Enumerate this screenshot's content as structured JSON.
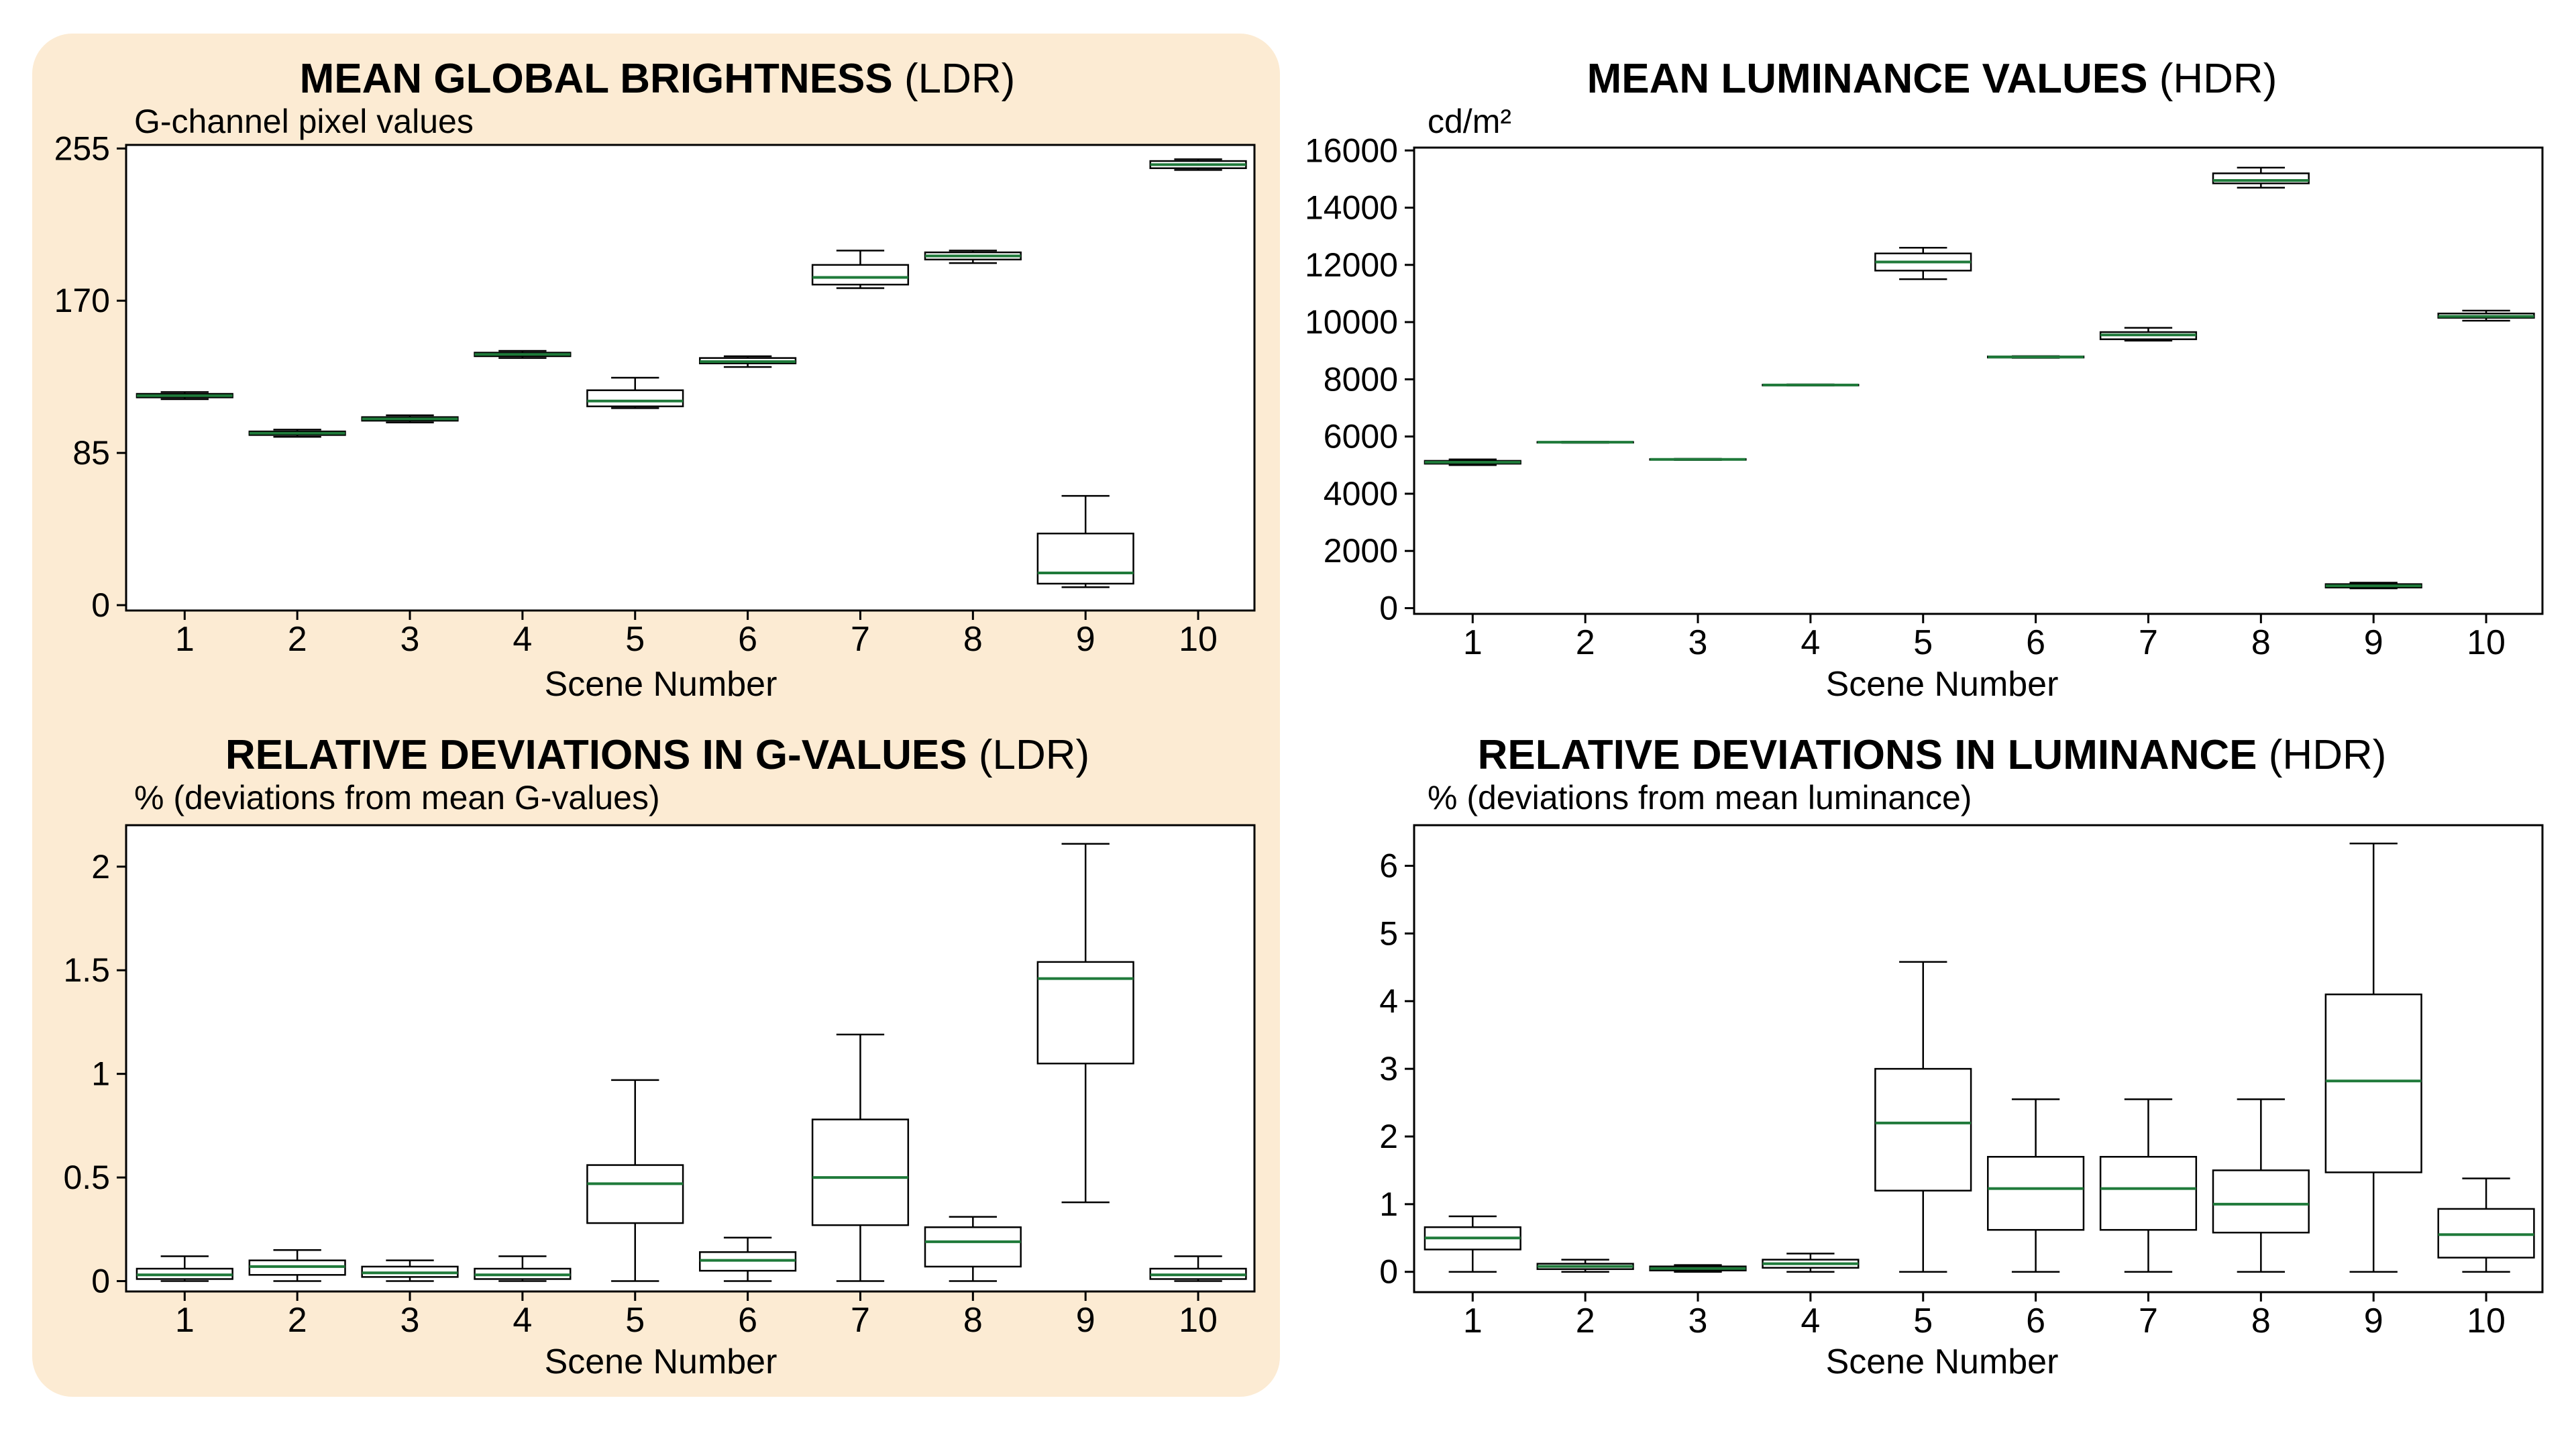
{
  "colors": {
    "panel_highlight": "#fcebd3",
    "median_line": "#1f7a3a",
    "box_stroke": "#000000"
  },
  "charts": [
    {
      "title_bold": "MEAN GLOBAL BRIGHTNESS",
      "title_suffix": "(LDR)",
      "unit_label": "G-channel pixel values",
      "xlabel": "Scene Number"
    },
    {
      "title_bold": "MEAN LUMINANCE VALUES",
      "title_suffix": "(HDR)",
      "unit_label": "cd/m²",
      "xlabel": "Scene Number"
    },
    {
      "title_bold": "RELATIVE DEVIATIONS IN G-VALUES",
      "title_suffix": "(LDR)",
      "unit_label": "% (deviations from mean G-values)",
      "xlabel": "Scene Number"
    },
    {
      "title_bold": "RELATIVE DEVIATIONS IN LUMINANCE",
      "title_suffix": "(HDR)",
      "unit_label": "% (deviations from mean luminance)",
      "xlabel": "Scene Number"
    }
  ],
  "chart_data": [
    {
      "type": "box",
      "title": "MEAN GLOBAL BRIGHTNESS (LDR)",
      "ylabel": "G-channel pixel values",
      "xlabel": "Scene Number",
      "categories": [
        "1",
        "2",
        "3",
        "4",
        "5",
        "6",
        "7",
        "8",
        "9",
        "10"
      ],
      "yticks": [
        0,
        85,
        170,
        255
      ],
      "ytick_labels": [
        "0",
        "85",
        "170",
        "255"
      ],
      "ylim": [
        -3,
        257
      ],
      "boxes": [
        {
          "min": 115,
          "q1": 116,
          "median": 117,
          "q3": 118,
          "max": 119
        },
        {
          "min": 94,
          "q1": 95,
          "median": 96,
          "q3": 97,
          "max": 98
        },
        {
          "min": 102,
          "q1": 103,
          "median": 104,
          "q3": 105,
          "max": 106
        },
        {
          "min": 138,
          "q1": 139,
          "median": 140,
          "q3": 141,
          "max": 142
        },
        {
          "min": 110,
          "q1": 111,
          "median": 114,
          "q3": 120,
          "max": 127
        },
        {
          "min": 133,
          "q1": 135,
          "median": 136,
          "q3": 138,
          "max": 139
        },
        {
          "min": 177,
          "q1": 179,
          "median": 183,
          "q3": 190,
          "max": 198
        },
        {
          "min": 191,
          "q1": 193,
          "median": 195,
          "q3": 197,
          "max": 198
        },
        {
          "min": 10,
          "q1": 12,
          "median": 18,
          "q3": 40,
          "max": 61
        },
        {
          "min": 243,
          "q1": 244,
          "median": 246,
          "q3": 248,
          "max": 249
        }
      ]
    },
    {
      "type": "box",
      "title": "MEAN LUMINANCE VALUES (HDR)",
      "ylabel": "cd/m²",
      "xlabel": "Scene Number",
      "categories": [
        "1",
        "2",
        "3",
        "4",
        "5",
        "6",
        "7",
        "8",
        "9",
        "10"
      ],
      "yticks": [
        0,
        2000,
        4000,
        6000,
        8000,
        10000,
        12000,
        14000,
        16000
      ],
      "ytick_labels": [
        "0",
        "2000",
        "4000",
        "6000",
        "8000",
        "10000",
        "12000",
        "14000",
        "16000"
      ],
      "ylim": [
        -200,
        16100
      ],
      "boxes": [
        {
          "min": 5000,
          "q1": 5050,
          "median": 5100,
          "q3": 5150,
          "max": 5200
        },
        {
          "min": 5780,
          "q1": 5790,
          "median": 5800,
          "q3": 5810,
          "max": 5820
        },
        {
          "min": 5180,
          "q1": 5190,
          "median": 5200,
          "q3": 5210,
          "max": 5220
        },
        {
          "min": 7780,
          "q1": 7790,
          "median": 7800,
          "q3": 7810,
          "max": 7820
        },
        {
          "min": 11500,
          "q1": 11800,
          "median": 12100,
          "q3": 12400,
          "max": 12600
        },
        {
          "min": 8750,
          "q1": 8760,
          "median": 8780,
          "q3": 8800,
          "max": 8810
        },
        {
          "min": 9350,
          "q1": 9400,
          "median": 9550,
          "q3": 9650,
          "max": 9800
        },
        {
          "min": 14700,
          "q1": 14850,
          "median": 14950,
          "q3": 15200,
          "max": 15400
        },
        {
          "min": 690,
          "q1": 720,
          "median": 780,
          "q3": 840,
          "max": 890
        },
        {
          "min": 10050,
          "q1": 10150,
          "median": 10200,
          "q3": 10300,
          "max": 10400
        }
      ]
    },
    {
      "type": "box",
      "title": "RELATIVE DEVIATIONS IN G-VALUES (LDR)",
      "ylabel": "% (deviations from mean G-values)",
      "xlabel": "Scene Number",
      "categories": [
        "1",
        "2",
        "3",
        "4",
        "5",
        "6",
        "7",
        "8",
        "9",
        "10"
      ],
      "yticks": [
        0,
        0.5,
        1,
        1.5,
        2
      ],
      "ytick_labels": [
        "0",
        "0.5",
        "1",
        "1.5",
        "2"
      ],
      "ylim": [
        -0.05,
        2.2
      ],
      "boxes": [
        {
          "min": 0,
          "q1": 0.01,
          "median": 0.03,
          "q3": 0.06,
          "max": 0.12
        },
        {
          "min": 0,
          "q1": 0.03,
          "median": 0.07,
          "q3": 0.1,
          "max": 0.15
        },
        {
          "min": 0,
          "q1": 0.02,
          "median": 0.04,
          "q3": 0.07,
          "max": 0.1
        },
        {
          "min": 0,
          "q1": 0.01,
          "median": 0.03,
          "q3": 0.06,
          "max": 0.12
        },
        {
          "min": 0,
          "q1": 0.28,
          "median": 0.47,
          "q3": 0.56,
          "max": 0.97
        },
        {
          "min": 0,
          "q1": 0.05,
          "median": 0.1,
          "q3": 0.14,
          "max": 0.21
        },
        {
          "min": 0,
          "q1": 0.27,
          "median": 0.5,
          "q3": 0.78,
          "max": 1.19
        },
        {
          "min": 0,
          "q1": 0.07,
          "median": 0.19,
          "q3": 0.26,
          "max": 0.31
        },
        {
          "min": 0.38,
          "q1": 1.05,
          "median": 1.46,
          "q3": 1.54,
          "max": 2.11
        },
        {
          "min": 0,
          "q1": 0.01,
          "median": 0.03,
          "q3": 0.06,
          "max": 0.12
        }
      ]
    },
    {
      "type": "box",
      "title": "RELATIVE DEVIATIONS IN LUMINANCE (HDR)",
      "ylabel": "% (deviations from mean luminance)",
      "xlabel": "Scene Number",
      "categories": [
        "1",
        "2",
        "3",
        "4",
        "5",
        "6",
        "7",
        "8",
        "9",
        "10"
      ],
      "yticks": [
        0,
        1,
        2,
        3,
        4,
        5,
        6
      ],
      "ytick_labels": [
        "0",
        "1",
        "2",
        "3",
        "4",
        "5",
        "6"
      ],
      "ylim": [
        -0.3,
        6.6
      ],
      "boxes": [
        {
          "min": 0,
          "q1": 0.33,
          "median": 0.5,
          "q3": 0.66,
          "max": 0.82
        },
        {
          "min": 0,
          "q1": 0.04,
          "median": 0.08,
          "q3": 0.12,
          "max": 0.18
        },
        {
          "min": 0,
          "q1": 0.02,
          "median": 0.05,
          "q3": 0.08,
          "max": 0.1
        },
        {
          "min": 0,
          "q1": 0.06,
          "median": 0.12,
          "q3": 0.18,
          "max": 0.27
        },
        {
          "min": 0,
          "q1": 1.2,
          "median": 2.2,
          "q3": 3.0,
          "max": 4.58
        },
        {
          "min": 0,
          "q1": 0.62,
          "median": 1.23,
          "q3": 1.7,
          "max": 2.55
        },
        {
          "min": 0,
          "q1": 0.62,
          "median": 1.23,
          "q3": 1.7,
          "max": 2.55
        },
        {
          "min": 0,
          "q1": 0.58,
          "median": 1.0,
          "q3": 1.5,
          "max": 2.55
        },
        {
          "min": 0,
          "q1": 1.47,
          "median": 2.82,
          "q3": 4.1,
          "max": 6.33
        },
        {
          "min": 0,
          "q1": 0.21,
          "median": 0.55,
          "q3": 0.93,
          "max": 1.38
        }
      ]
    }
  ]
}
